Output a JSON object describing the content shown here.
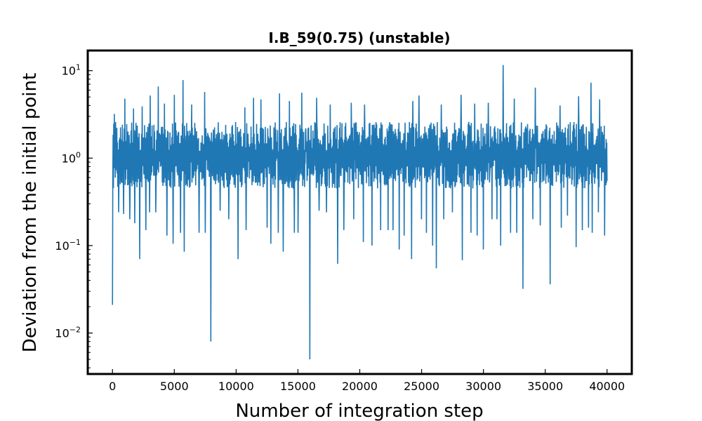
{
  "chart_data": {
    "type": "line",
    "title": "I.B_59(0.75) (unstable)",
    "xlabel": "Number of integration step",
    "ylabel": "Deviation from the initial point",
    "xlim": [
      -2000,
      42000
    ],
    "ylim": [
      0.0034,
      17
    ],
    "yscale": "log",
    "grid": false,
    "line_color": "#1f77b4",
    "x_ticks": [
      0,
      5000,
      10000,
      15000,
      20000,
      25000,
      30000,
      35000,
      40000
    ],
    "x_tick_labels": [
      "0",
      "5000",
      "10000",
      "15000",
      "20000",
      "25000",
      "30000",
      "35000",
      "40000"
    ],
    "y_ticks": [
      {
        "value": 10,
        "base": "10",
        "exp": "1"
      },
      {
        "value": 1,
        "base": "10",
        "exp": "0"
      },
      {
        "value": 0.1,
        "base": "10",
        "exp": "−1"
      },
      {
        "value": 0.01,
        "base": "10",
        "exp": "−2"
      }
    ],
    "series": [
      {
        "x_start": 0,
        "x_end": 40000,
        "n_points": 1600,
        "typical_range": [
          0.45,
          2.6
        ],
        "peaks": [
          {
            "x": 150,
            "y": 3.2
          },
          {
            "x": 500,
            "y": 4.9
          },
          {
            "x": 1000,
            "y": 4.8
          },
          {
            "x": 1700,
            "y": 3.7
          },
          {
            "x": 2400,
            "y": 3.9
          },
          {
            "x": 3050,
            "y": 5.2
          },
          {
            "x": 3700,
            "y": 6.6
          },
          {
            "x": 4200,
            "y": 4.2
          },
          {
            "x": 5000,
            "y": 5.3
          },
          {
            "x": 5700,
            "y": 7.8
          },
          {
            "x": 6400,
            "y": 4.1
          },
          {
            "x": 7450,
            "y": 5.7
          },
          {
            "x": 8700,
            "y": 4.9
          },
          {
            "x": 9400,
            "y": 4.8
          },
          {
            "x": 10700,
            "y": 3.8
          },
          {
            "x": 11400,
            "y": 4.9
          },
          {
            "x": 12000,
            "y": 4.7
          },
          {
            "x": 13500,
            "y": 5.5
          },
          {
            "x": 14300,
            "y": 4.5
          },
          {
            "x": 15300,
            "y": 5.6
          },
          {
            "x": 16500,
            "y": 4.9
          },
          {
            "x": 17600,
            "y": 4.1
          },
          {
            "x": 19300,
            "y": 4.3
          },
          {
            "x": 20400,
            "y": 4.1
          },
          {
            "x": 21700,
            "y": 5.9
          },
          {
            "x": 23200,
            "y": 4.1
          },
          {
            "x": 24300,
            "y": 4.5
          },
          {
            "x": 24800,
            "y": 5.2
          },
          {
            "x": 26600,
            "y": 4.1
          },
          {
            "x": 28200,
            "y": 5.3
          },
          {
            "x": 29300,
            "y": 4.2
          },
          {
            "x": 30400,
            "y": 4.3
          },
          {
            "x": 31600,
            "y": 11.6
          },
          {
            "x": 32500,
            "y": 4.8
          },
          {
            "x": 33200,
            "y": 5.2
          },
          {
            "x": 34200,
            "y": 6.4
          },
          {
            "x": 35400,
            "y": 4.2
          },
          {
            "x": 36200,
            "y": 4.0
          },
          {
            "x": 37700,
            "y": 5.1
          },
          {
            "x": 38700,
            "y": 7.3
          },
          {
            "x": 39400,
            "y": 4.7
          }
        ],
        "dips": [
          {
            "x": 10,
            "y": 0.021
          },
          {
            "x": 500,
            "y": 0.24
          },
          {
            "x": 900,
            "y": 0.23
          },
          {
            "x": 1400,
            "y": 0.2
          },
          {
            "x": 1800,
            "y": 0.18
          },
          {
            "x": 2200,
            "y": 0.07
          },
          {
            "x": 2700,
            "y": 0.15
          },
          {
            "x": 3000,
            "y": 0.24
          },
          {
            "x": 3500,
            "y": 0.24
          },
          {
            "x": 4400,
            "y": 0.13
          },
          {
            "x": 4900,
            "y": 0.105
          },
          {
            "x": 5500,
            "y": 0.14
          },
          {
            "x": 5800,
            "y": 0.085
          },
          {
            "x": 7000,
            "y": 0.14
          },
          {
            "x": 7500,
            "y": 0.14
          },
          {
            "x": 7950,
            "y": 0.008
          },
          {
            "x": 8700,
            "y": 0.25
          },
          {
            "x": 9400,
            "y": 0.2
          },
          {
            "x": 10150,
            "y": 0.07
          },
          {
            "x": 10800,
            "y": 0.15
          },
          {
            "x": 12500,
            "y": 0.16
          },
          {
            "x": 12800,
            "y": 0.105
          },
          {
            "x": 13400,
            "y": 0.14
          },
          {
            "x": 13800,
            "y": 0.085
          },
          {
            "x": 14700,
            "y": 0.14
          },
          {
            "x": 15000,
            "y": 0.14
          },
          {
            "x": 15950,
            "y": 0.005
          },
          {
            "x": 16700,
            "y": 0.25
          },
          {
            "x": 17300,
            "y": 0.24
          },
          {
            "x": 18200,
            "y": 0.062
          },
          {
            "x": 18700,
            "y": 0.15
          },
          {
            "x": 19500,
            "y": 0.2
          },
          {
            "x": 20300,
            "y": 0.11
          },
          {
            "x": 21000,
            "y": 0.1
          },
          {
            "x": 21700,
            "y": 0.15
          },
          {
            "x": 22300,
            "y": 0.15
          },
          {
            "x": 22700,
            "y": 0.15
          },
          {
            "x": 23200,
            "y": 0.09
          },
          {
            "x": 23600,
            "y": 0.13
          },
          {
            "x": 24200,
            "y": 0.07
          },
          {
            "x": 25000,
            "y": 0.2
          },
          {
            "x": 25400,
            "y": 0.14
          },
          {
            "x": 25900,
            "y": 0.1
          },
          {
            "x": 26200,
            "y": 0.055
          },
          {
            "x": 26800,
            "y": 0.2
          },
          {
            "x": 27500,
            "y": 0.24
          },
          {
            "x": 28300,
            "y": 0.068
          },
          {
            "x": 29000,
            "y": 0.14
          },
          {
            "x": 29500,
            "y": 0.13
          },
          {
            "x": 30000,
            "y": 0.09
          },
          {
            "x": 30700,
            "y": 0.2
          },
          {
            "x": 31100,
            "y": 0.2
          },
          {
            "x": 31400,
            "y": 0.1
          },
          {
            "x": 32200,
            "y": 0.14
          },
          {
            "x": 32700,
            "y": 0.14
          },
          {
            "x": 33200,
            "y": 0.032
          },
          {
            "x": 34000,
            "y": 0.2
          },
          {
            "x": 34600,
            "y": 0.17
          },
          {
            "x": 35400,
            "y": 0.036
          },
          {
            "x": 36300,
            "y": 0.16
          },
          {
            "x": 36800,
            "y": 0.22
          },
          {
            "x": 37500,
            "y": 0.096
          },
          {
            "x": 38000,
            "y": 0.15
          },
          {
            "x": 38500,
            "y": 0.16
          },
          {
            "x": 38800,
            "y": 0.14
          },
          {
            "x": 39300,
            "y": 0.24
          },
          {
            "x": 39800,
            "y": 0.13
          }
        ]
      }
    ]
  }
}
